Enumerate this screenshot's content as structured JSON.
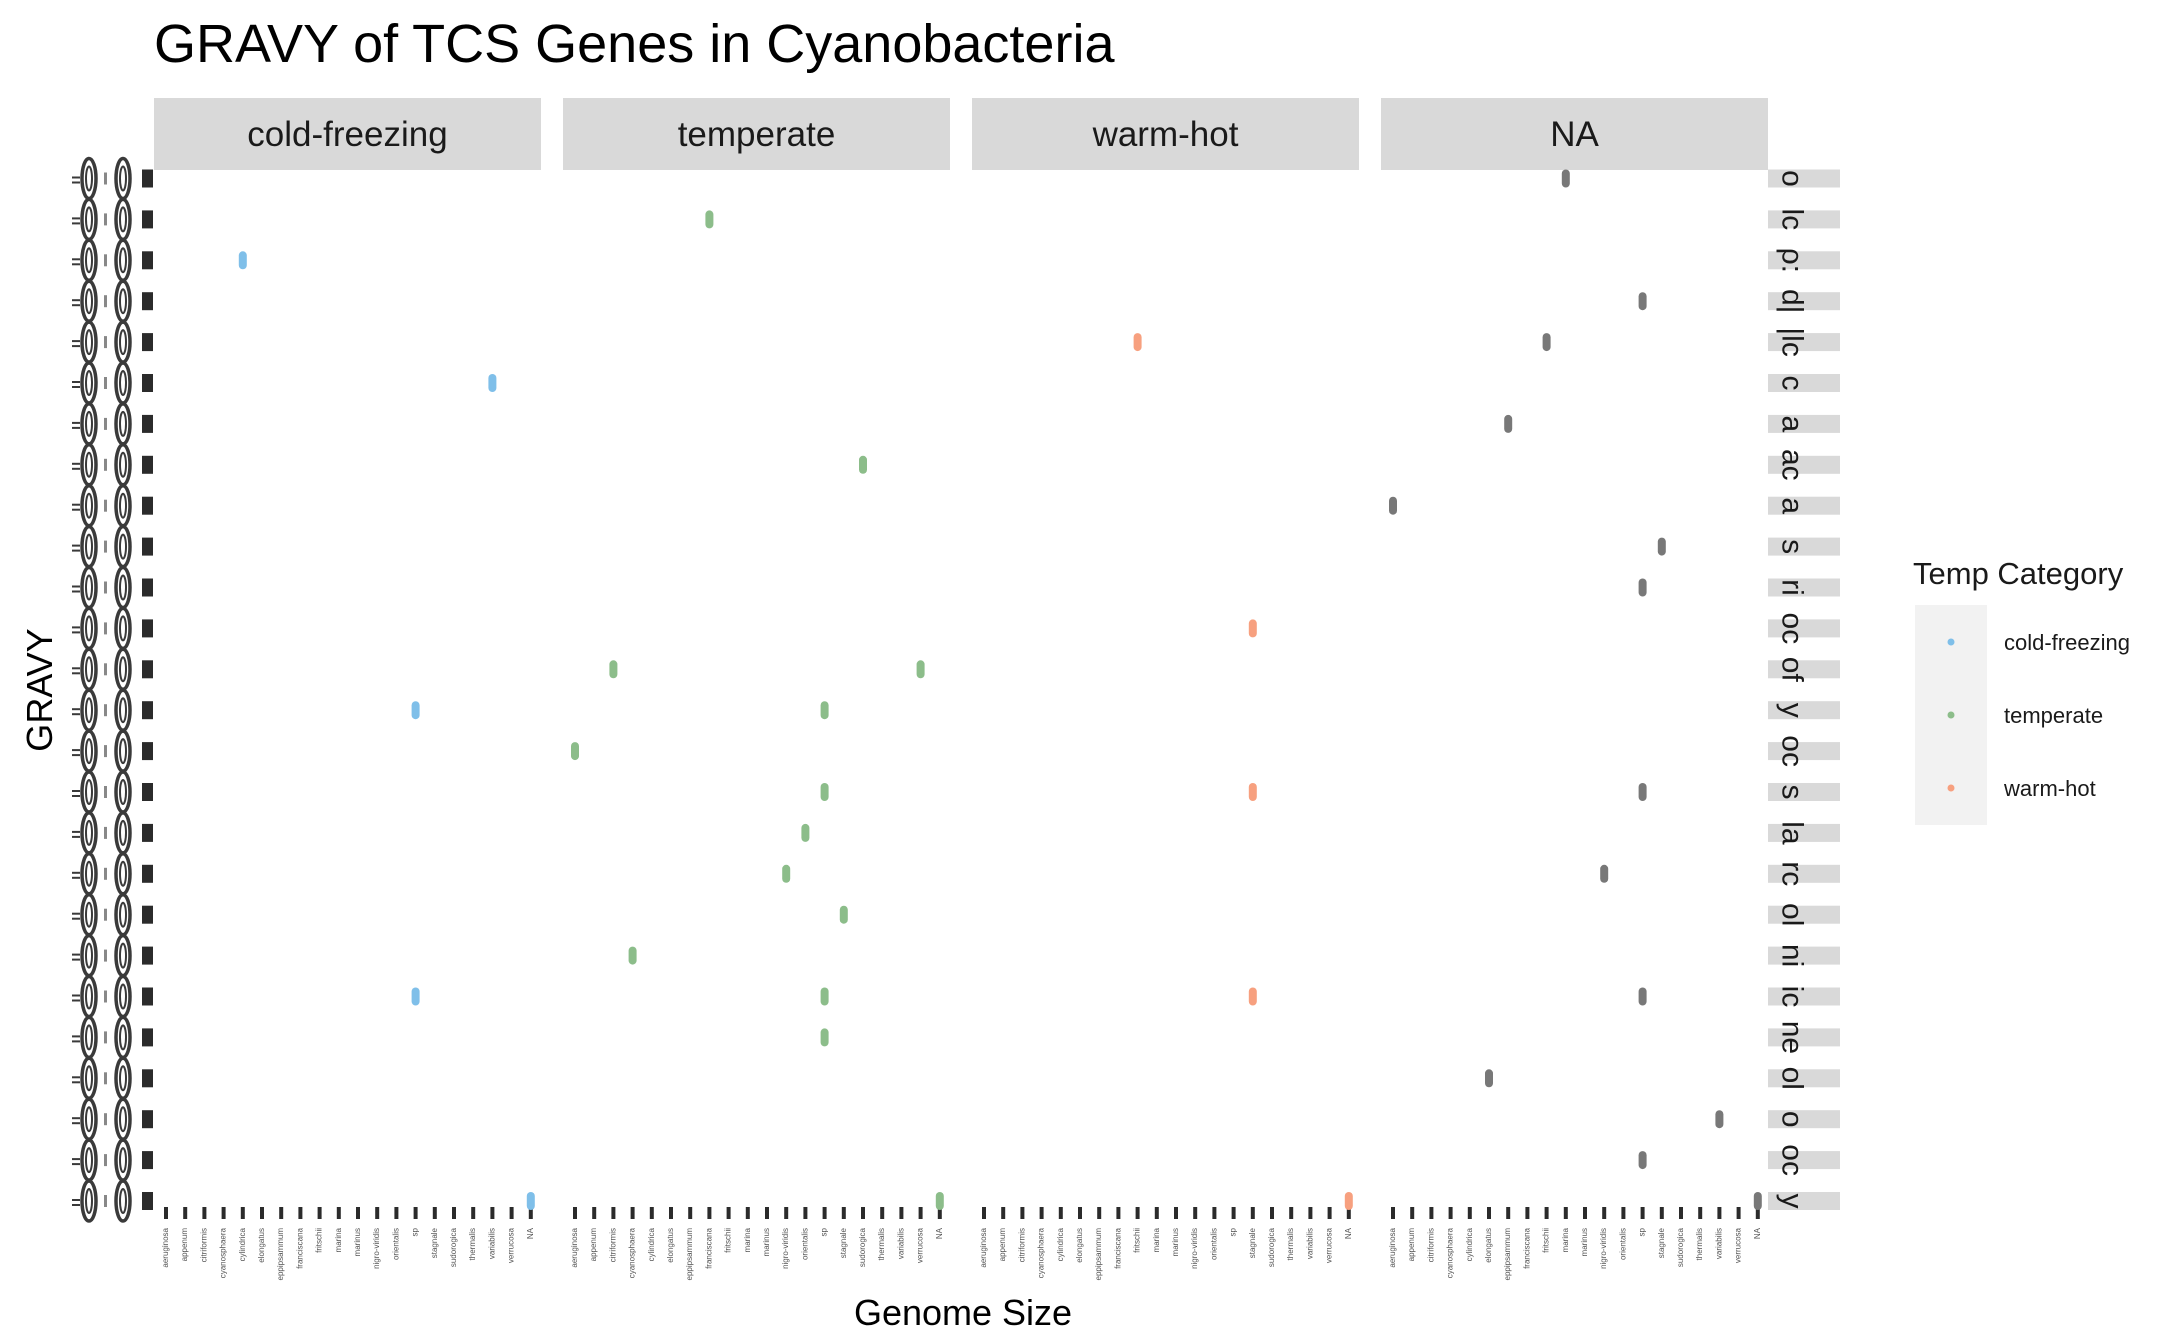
{
  "chart_data": {
    "type": "scatter",
    "title": "GRAVY of TCS Genes in Cyanobacteria",
    "xlabel": "Genome Size",
    "ylabel": "GRAVY",
    "facets": [
      "cold-freezing",
      "temperate",
      "warm-hot",
      "NA"
    ],
    "x_categories": [
      "aeruginosa",
      "appenum",
      "citriformis",
      "cyanosphaera",
      "cylindrica",
      "elongatus",
      "eppipsammum",
      "franciscana",
      "fritschii",
      "marina",
      "marinus",
      "nigro-viridis",
      "orientalis",
      "sp",
      "stagnale",
      "sudorogica",
      "thermalis",
      "variabilis",
      "verrucosa",
      "NA"
    ],
    "row_count": 26,
    "row_strip_labels": [
      "o",
      "lc",
      "ρ:",
      "d|",
      "|lc",
      "c",
      "a",
      "ac",
      "a",
      "s",
      "ri",
      "oc",
      "of",
      "y",
      "oc",
      "s",
      "la",
      "rc",
      "ol",
      "ni",
      "ic",
      "ne",
      "ol",
      "o",
      "oc",
      "y"
    ],
    "legend": {
      "title": "Temp Category",
      "position": "right",
      "items": [
        {
          "label": "cold-freezing",
          "color": "#7fbfe9"
        },
        {
          "label": "temperate",
          "color": "#8cbd8a"
        },
        {
          "label": "warm-hot",
          "color": "#f7a07f"
        }
      ]
    },
    "na_color": "#787878",
    "grid": false,
    "points": [
      {
        "facet": "cold-freezing",
        "row": 2,
        "x": "cylindrica"
      },
      {
        "facet": "cold-freezing",
        "row": 5,
        "x": "variabilis"
      },
      {
        "facet": "cold-freezing",
        "row": 13,
        "x": "sp"
      },
      {
        "facet": "cold-freezing",
        "row": 20,
        "x": "sp"
      },
      {
        "facet": "cold-freezing",
        "row": 25,
        "x": "NA"
      },
      {
        "facet": "temperate",
        "row": 1,
        "x": "franciscana"
      },
      {
        "facet": "temperate",
        "row": 7,
        "x": "sudorogica"
      },
      {
        "facet": "temperate",
        "row": 12,
        "x": "citriformis"
      },
      {
        "facet": "temperate",
        "row": 12,
        "x": "verrucosa"
      },
      {
        "facet": "temperate",
        "row": 13,
        "x": "sp"
      },
      {
        "facet": "temperate",
        "row": 14,
        "x": "aeruginosa"
      },
      {
        "facet": "temperate",
        "row": 15,
        "x": "sp"
      },
      {
        "facet": "temperate",
        "row": 16,
        "x": "orientalis"
      },
      {
        "facet": "temperate",
        "row": 17,
        "x": "nigro-viridis"
      },
      {
        "facet": "temperate",
        "row": 18,
        "x": "stagnale"
      },
      {
        "facet": "temperate",
        "row": 19,
        "x": "cyanosphaera"
      },
      {
        "facet": "temperate",
        "row": 20,
        "x": "sp"
      },
      {
        "facet": "temperate",
        "row": 21,
        "x": "sp"
      },
      {
        "facet": "temperate",
        "row": 25,
        "x": "NA"
      },
      {
        "facet": "warm-hot",
        "row": 4,
        "x": "fritschii"
      },
      {
        "facet": "warm-hot",
        "row": 11,
        "x": "stagnale"
      },
      {
        "facet": "warm-hot",
        "row": 15,
        "x": "stagnale"
      },
      {
        "facet": "warm-hot",
        "row": 20,
        "x": "stagnale"
      },
      {
        "facet": "warm-hot",
        "row": 25,
        "x": "NA"
      },
      {
        "facet": "NA",
        "row": 0,
        "x": "marina"
      },
      {
        "facet": "NA",
        "row": 3,
        "x": "sp"
      },
      {
        "facet": "NA",
        "row": 4,
        "x": "fritschii"
      },
      {
        "facet": "NA",
        "row": 6,
        "x": "eppipsammum"
      },
      {
        "facet": "NA",
        "row": 8,
        "x": "aeruginosa"
      },
      {
        "facet": "NA",
        "row": 9,
        "x": "stagnale"
      },
      {
        "facet": "NA",
        "row": 10,
        "x": "sp"
      },
      {
        "facet": "NA",
        "row": 15,
        "x": "sp"
      },
      {
        "facet": "NA",
        "row": 17,
        "x": "nigro-viridis"
      },
      {
        "facet": "NA",
        "row": 20,
        "x": "sp"
      },
      {
        "facet": "NA",
        "row": 22,
        "x": "elongatus"
      },
      {
        "facet": "NA",
        "row": 23,
        "x": "variabilis"
      },
      {
        "facet": "NA",
        "row": 24,
        "x": "sp"
      },
      {
        "facet": "NA",
        "row": 25,
        "x": "NA"
      }
    ]
  }
}
